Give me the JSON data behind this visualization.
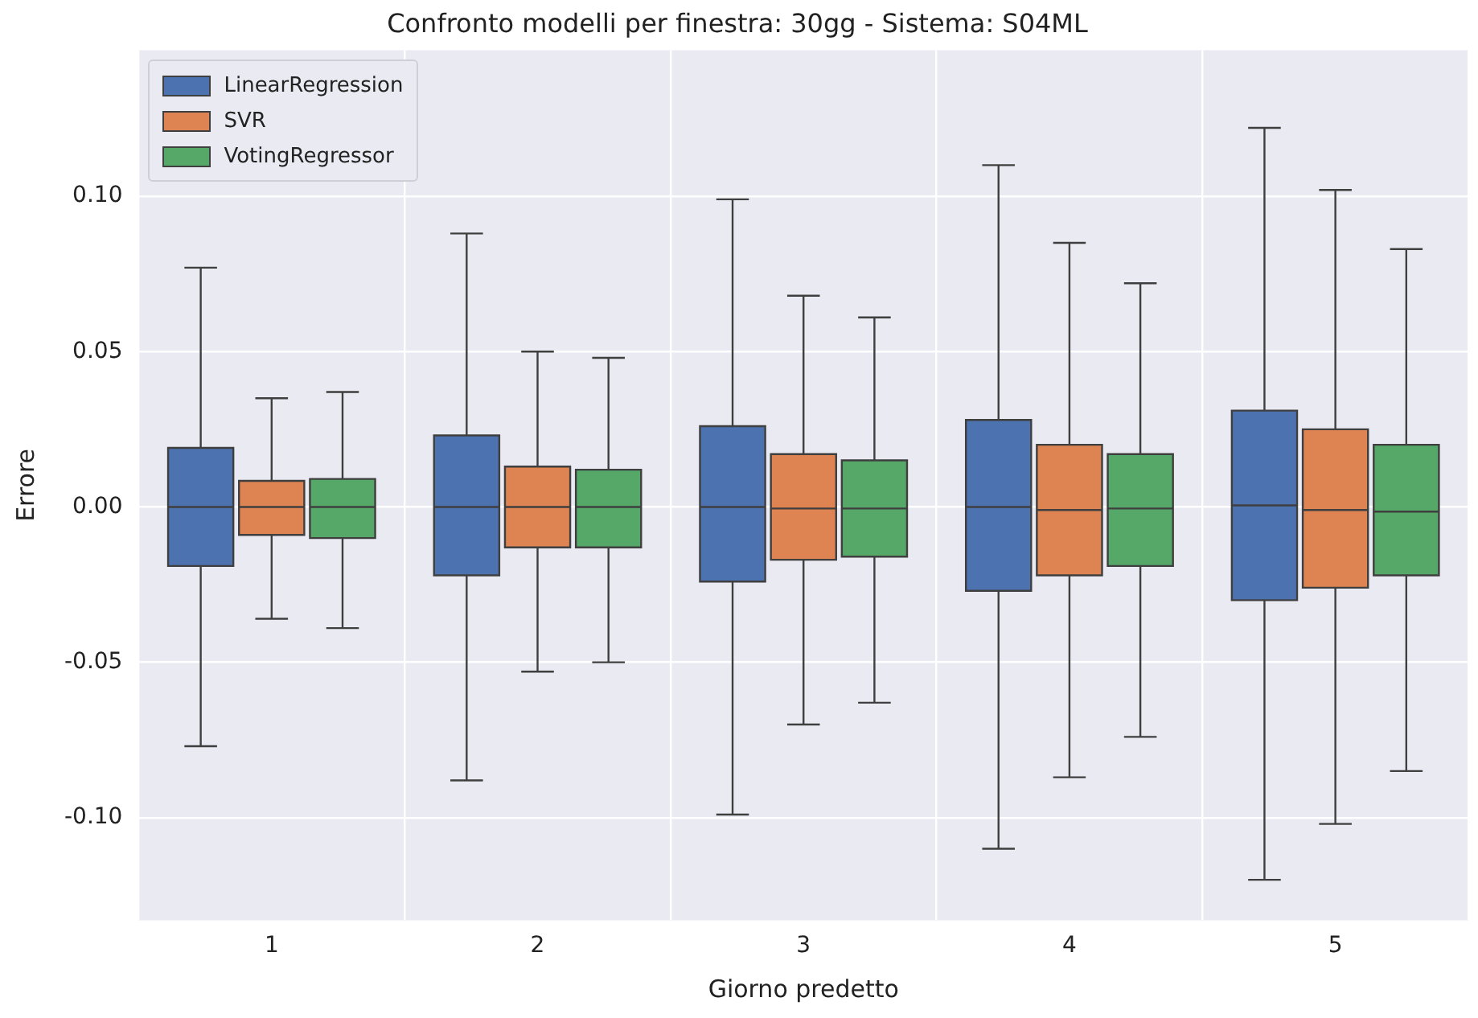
{
  "chart_data": {
    "type": "box",
    "title": "Confronto modelli per finestra: 30gg - Sistema: S04ML",
    "xlabel": "Giorno predetto",
    "ylabel": "Errore",
    "categories": [
      "1",
      "2",
      "3",
      "4",
      "5"
    ],
    "series": [
      {
        "name": "LinearRegression",
        "color": "#4c72b0",
        "boxes": [
          {
            "low": -0.077,
            "q1": -0.019,
            "median": 0.0,
            "q3": 0.019,
            "high": 0.077
          },
          {
            "low": -0.088,
            "q1": -0.022,
            "median": 0.0,
            "q3": 0.023,
            "high": 0.088
          },
          {
            "low": -0.099,
            "q1": -0.024,
            "median": 0.0,
            "q3": 0.026,
            "high": 0.099
          },
          {
            "low": -0.11,
            "q1": -0.027,
            "median": 0.0,
            "q3": 0.028,
            "high": 0.11
          },
          {
            "low": -0.12,
            "q1": -0.03,
            "median": 0.0005,
            "q3": 0.031,
            "high": 0.122
          }
        ]
      },
      {
        "name": "SVR",
        "color": "#dd8452",
        "boxes": [
          {
            "low": -0.036,
            "q1": -0.009,
            "median": 0.0,
            "q3": 0.0084,
            "high": 0.035
          },
          {
            "low": -0.053,
            "q1": -0.013,
            "median": 0.0,
            "q3": 0.013,
            "high": 0.05
          },
          {
            "low": -0.07,
            "q1": -0.017,
            "median": -0.0005,
            "q3": 0.017,
            "high": 0.068
          },
          {
            "low": -0.087,
            "q1": -0.022,
            "median": -0.001,
            "q3": 0.02,
            "high": 0.085
          },
          {
            "low": -0.102,
            "q1": -0.026,
            "median": -0.001,
            "q3": 0.025,
            "high": 0.102
          }
        ]
      },
      {
        "name": "VotingRegressor",
        "color": "#55a868",
        "boxes": [
          {
            "low": -0.039,
            "q1": -0.01,
            "median": 0.0,
            "q3": 0.009,
            "high": 0.037
          },
          {
            "low": -0.05,
            "q1": -0.013,
            "median": 0.0,
            "q3": 0.012,
            "high": 0.048
          },
          {
            "low": -0.063,
            "q1": -0.016,
            "median": -0.0005,
            "q3": 0.015,
            "high": 0.061
          },
          {
            "low": -0.074,
            "q1": -0.019,
            "median": -0.0005,
            "q3": 0.017,
            "high": 0.072
          },
          {
            "low": -0.085,
            "q1": -0.022,
            "median": -0.0015,
            "q3": 0.02,
            "high": 0.083
          }
        ]
      }
    ],
    "ylim": [
      -0.133,
      0.147
    ],
    "yticks": [
      {
        "value": -0.1,
        "label": "-0.10"
      },
      {
        "value": -0.05,
        "label": "-0.05"
      },
      {
        "value": 0,
        "label": "0.00"
      },
      {
        "value": 0.05,
        "label": "0.05"
      },
      {
        "value": 0.1,
        "label": "0.10"
      }
    ],
    "grid": true,
    "legend": "top left"
  }
}
